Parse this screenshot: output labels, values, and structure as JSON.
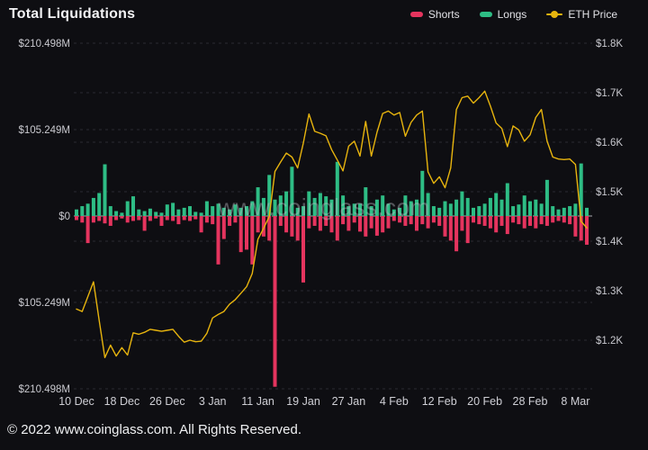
{
  "header": {
    "title": "Total Liquidations"
  },
  "legend": {
    "items": [
      {
        "label": "Shorts",
        "color": "#e5345e",
        "icon": "bar-swatch"
      },
      {
        "label": "Longs",
        "color": "#2ebd85",
        "icon": "bar-swatch"
      },
      {
        "label": "ETH Price",
        "color": "#e7b40e",
        "icon": "line-marker"
      }
    ]
  },
  "watermark": "www.coinglass.com",
  "footer": {
    "copyright": "© 2022 www.coinglass.com. All Rights Reserved."
  },
  "colors": {
    "background": "#0e0e12",
    "shorts": "#e5345e",
    "longs": "#2ebd85",
    "eth_price": "#e7b40e",
    "grid": "#2a2a31",
    "zero_line": "#aaaab2",
    "axis_text": "#c9c9cf"
  },
  "chart_data": {
    "type": "bar",
    "subtype": "mirrored-bars-with-line",
    "title": "Total Liquidations",
    "legend_position": "top-right",
    "grid": true,
    "x_tick_labels": [
      "10 Dec",
      "18 Dec",
      "26 Dec",
      "3 Jan",
      "11 Jan",
      "19 Jan",
      "27 Jan",
      "4 Feb",
      "12 Feb",
      "20 Feb",
      "28 Feb",
      "8 Mar"
    ],
    "x_tick_indices": [
      0,
      8,
      16,
      24,
      32,
      40,
      48,
      56,
      64,
      72,
      80,
      88
    ],
    "left_axis": {
      "unit": "USD liquidations",
      "labels": [
        "$210.498M",
        "$105.249M",
        "$0",
        "$105.249M",
        "$210.498M"
      ],
      "values_millions": [
        210.498,
        105.249,
        0,
        -105.249,
        -210.498
      ]
    },
    "right_axis": {
      "unit": "ETH price USD",
      "labels": [
        "$1.8K",
        "$1.7K",
        "$1.6K",
        "$1.5K",
        "$1.4K",
        "$1.3K",
        "$1.2K"
      ],
      "values": [
        1800,
        1700,
        1600,
        1500,
        1400,
        1300,
        1200
      ]
    },
    "x": [
      "10 Dec",
      "11 Dec",
      "12 Dec",
      "13 Dec",
      "14 Dec",
      "15 Dec",
      "16 Dec",
      "17 Dec",
      "18 Dec",
      "19 Dec",
      "20 Dec",
      "21 Dec",
      "22 Dec",
      "23 Dec",
      "24 Dec",
      "25 Dec",
      "26 Dec",
      "27 Dec",
      "28 Dec",
      "29 Dec",
      "30 Dec",
      "31 Dec",
      "1 Jan",
      "2 Jan",
      "3 Jan",
      "4 Jan",
      "5 Jan",
      "6 Jan",
      "7 Jan",
      "8 Jan",
      "9 Jan",
      "10 Jan",
      "11 Jan",
      "12 Jan",
      "13 Jan",
      "14 Jan",
      "15 Jan",
      "16 Jan",
      "17 Jan",
      "18 Jan",
      "19 Jan",
      "20 Jan",
      "21 Jan",
      "22 Jan",
      "23 Jan",
      "24 Jan",
      "25 Jan",
      "26 Jan",
      "27 Jan",
      "28 Jan",
      "29 Jan",
      "30 Jan",
      "31 Jan",
      "1 Feb",
      "2 Feb",
      "3 Feb",
      "4 Feb",
      "5 Feb",
      "6 Feb",
      "7 Feb",
      "8 Feb",
      "9 Feb",
      "10 Feb",
      "11 Feb",
      "12 Feb",
      "13 Feb",
      "14 Feb",
      "15 Feb",
      "16 Feb",
      "17 Feb",
      "18 Feb",
      "19 Feb",
      "20 Feb",
      "21 Feb",
      "22 Feb",
      "23 Feb",
      "24 Feb",
      "25 Feb",
      "26 Feb",
      "27 Feb",
      "28 Feb",
      "1 Mar",
      "2 Mar",
      "3 Mar",
      "4 Mar",
      "5 Mar",
      "6 Mar",
      "7 Mar",
      "8 Mar",
      "9 Mar",
      "10 Mar"
    ],
    "series": [
      {
        "name": "Longs",
        "type": "bar",
        "direction": "up",
        "axis": "left",
        "unit": "$M",
        "color": "#2ebd85",
        "values": [
          8,
          12,
          15,
          22,
          28,
          63,
          12,
          6,
          4,
          18,
          24,
          8,
          6,
          9,
          5,
          4,
          14,
          16,
          8,
          10,
          12,
          5,
          4,
          18,
          12,
          15,
          10,
          8,
          14,
          10,
          12,
          18,
          35,
          22,
          50,
          20,
          25,
          30,
          60,
          10,
          12,
          30,
          22,
          28,
          24,
          20,
          66,
          25,
          12,
          15,
          15,
          35,
          12,
          20,
          25,
          15,
          8,
          10,
          25,
          18,
          20,
          55,
          28,
          12,
          10,
          18,
          15,
          20,
          30,
          22,
          10,
          12,
          15,
          22,
          28,
          20,
          40,
          12,
          14,
          25,
          18,
          20,
          15,
          44,
          12,
          8,
          10,
          12,
          15,
          64,
          10
        ]
      },
      {
        "name": "Shorts",
        "type": "bar",
        "direction": "down",
        "axis": "left",
        "unit": "$M",
        "color": "#e5345e",
        "values": [
          5,
          8,
          33,
          8,
          6,
          9,
          12,
          5,
          3,
          8,
          6,
          5,
          18,
          6,
          3,
          12,
          5,
          6,
          10,
          5,
          6,
          4,
          20,
          8,
          10,
          59,
          28,
          12,
          8,
          44,
          41,
          59,
          20,
          25,
          30,
          208,
          12,
          20,
          25,
          30,
          81,
          15,
          12,
          18,
          12,
          20,
          30,
          10,
          18,
          8,
          19,
          25,
          15,
          24,
          20,
          15,
          6,
          8,
          12,
          10,
          18,
          10,
          15,
          8,
          12,
          25,
          30,
          43,
          18,
          33,
          8,
          10,
          12,
          15,
          20,
          12,
          22,
          8,
          10,
          15,
          12,
          15,
          10,
          12,
          8,
          6,
          8,
          10,
          25,
          30,
          35
        ]
      },
      {
        "name": "ETH Price",
        "type": "line",
        "axis": "right",
        "unit": "$",
        "color": "#e7b40e",
        "values": [
          1263,
          1258,
          1288,
          1318,
          1240,
          1165,
          1190,
          1168,
          1185,
          1170,
          1215,
          1212,
          1216,
          1222,
          1220,
          1218,
          1220,
          1222,
          1208,
          1196,
          1200,
          1197,
          1198,
          1214,
          1245,
          1252,
          1258,
          1273,
          1282,
          1295,
          1308,
          1335,
          1404,
          1426,
          1450,
          1541,
          1560,
          1578,
          1570,
          1548,
          1598,
          1657,
          1622,
          1618,
          1613,
          1585,
          1564,
          1542,
          1592,
          1602,
          1572,
          1642,
          1572,
          1620,
          1658,
          1663,
          1655,
          1660,
          1612,
          1640,
          1655,
          1663,
          1540,
          1517,
          1530,
          1508,
          1548,
          1666,
          1690,
          1693,
          1679,
          1690,
          1703,
          1673,
          1639,
          1628,
          1591,
          1633,
          1625,
          1602,
          1615,
          1650,
          1666,
          1602,
          1570,
          1566,
          1565,
          1566,
          1555,
          1440,
          1427
        ]
      }
    ]
  }
}
